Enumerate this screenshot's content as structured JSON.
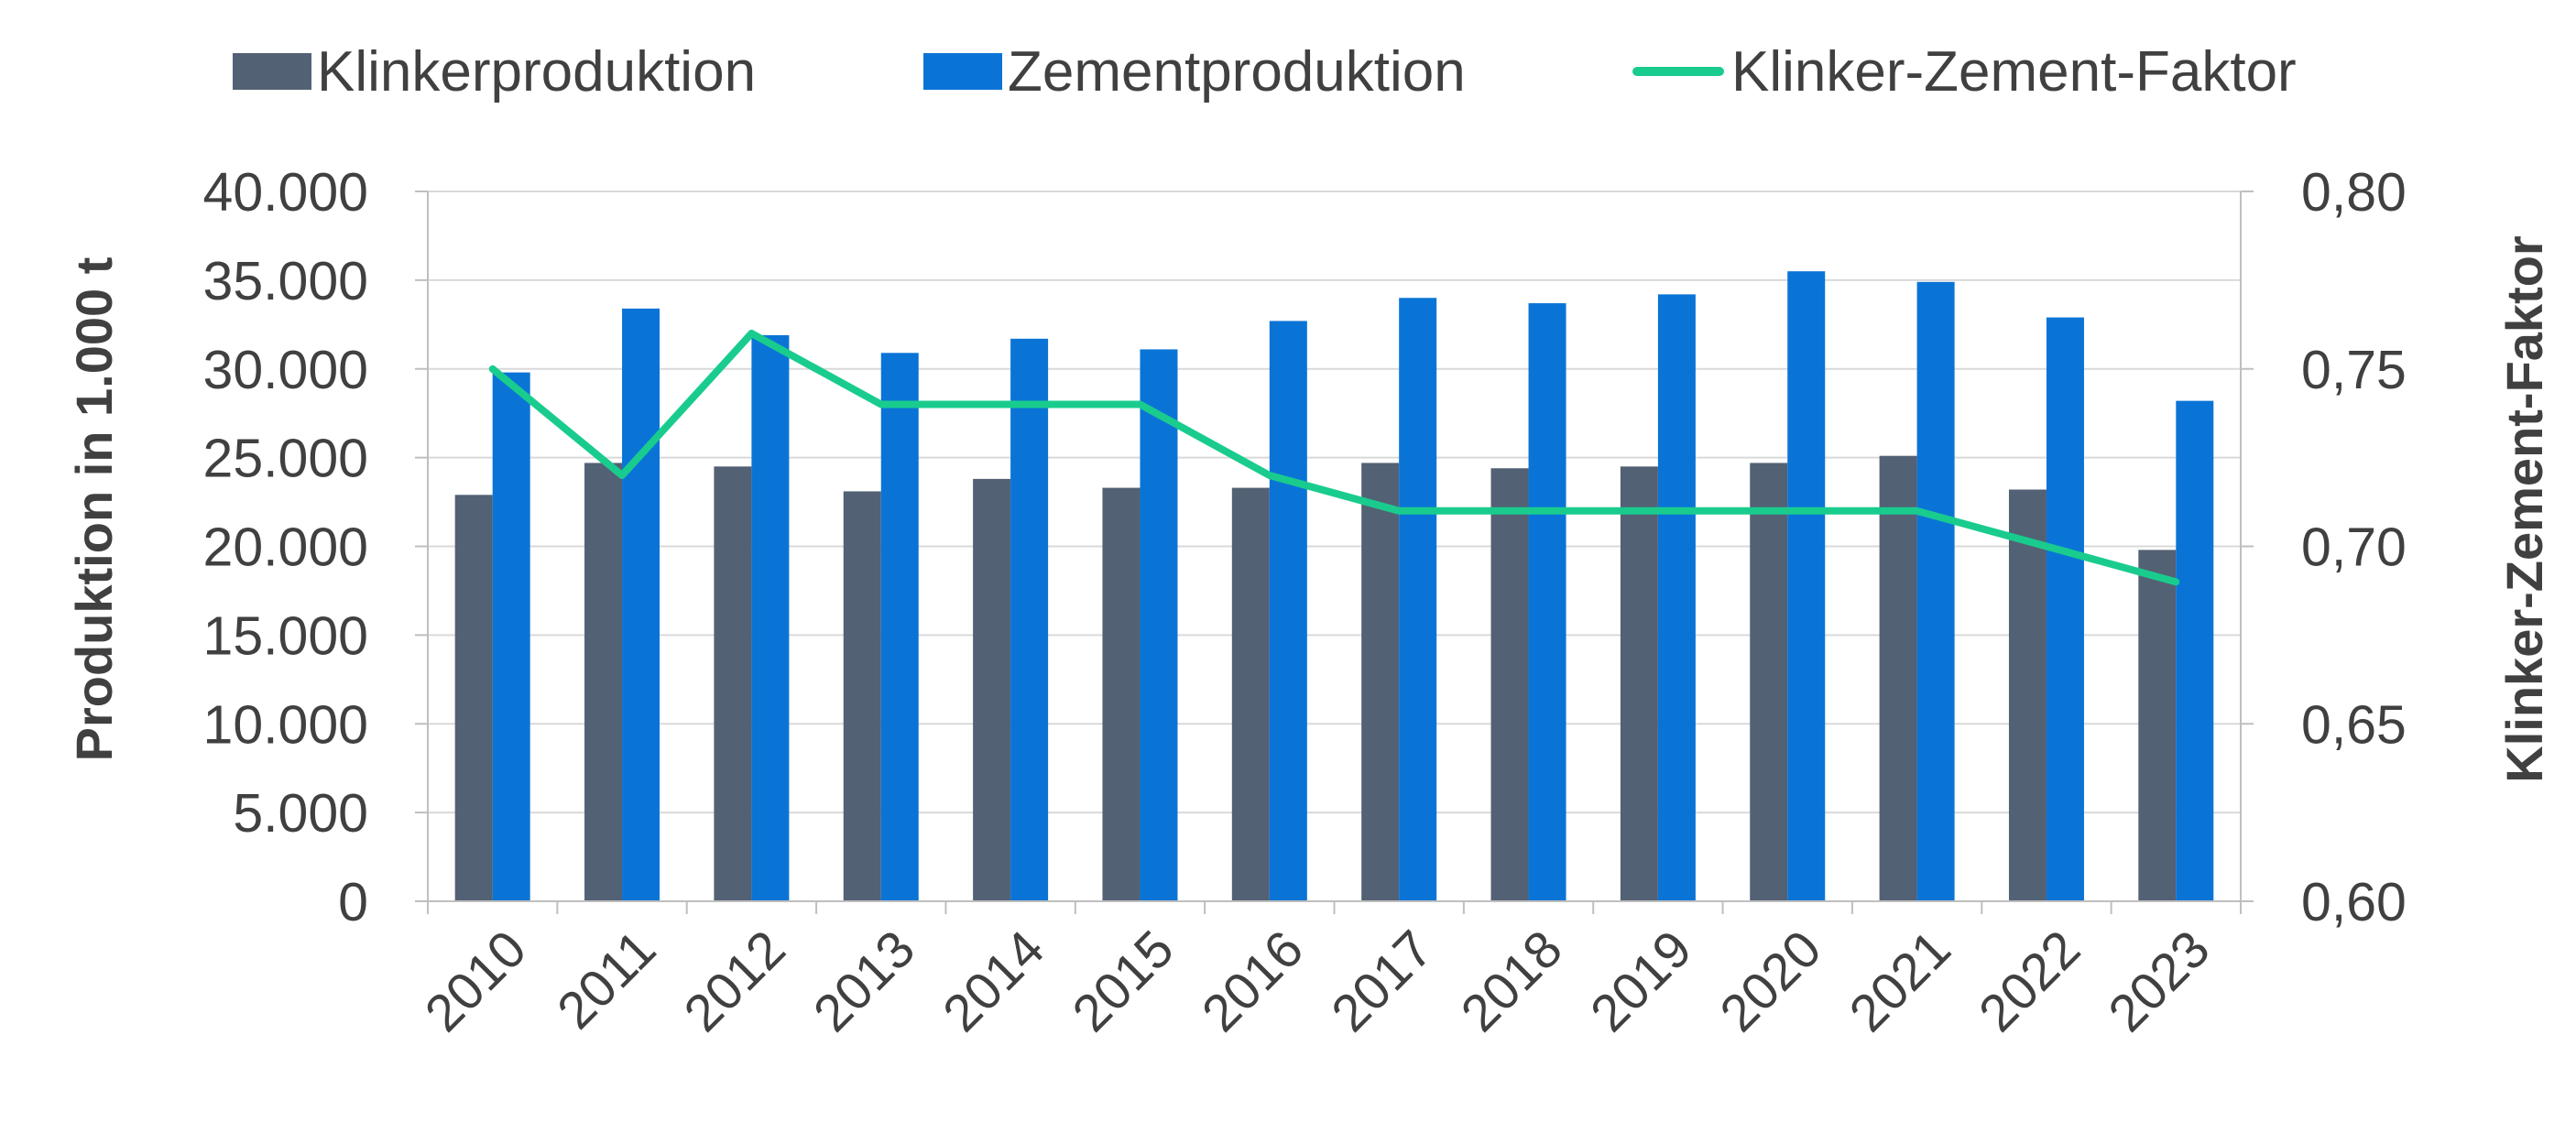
{
  "chart_data": {
    "type": "bar",
    "categories": [
      "2010",
      "2011",
      "2012",
      "2013",
      "2014",
      "2015",
      "2016",
      "2017",
      "2018",
      "2019",
      "2020",
      "2021",
      "2022",
      "2023"
    ],
    "series": [
      {
        "name": "Klinkerproduktion",
        "kind": "bar",
        "axis": "left",
        "color": "#536174",
        "values": [
          22900,
          24700,
          24500,
          23100,
          23800,
          23300,
          23300,
          24700,
          24400,
          24500,
          24700,
          25100,
          23200,
          19800
        ]
      },
      {
        "name": "Zementproduktion",
        "kind": "bar",
        "axis": "left",
        "color": "#0A74D6",
        "values": [
          29800,
          33400,
          31900,
          30900,
          31700,
          31100,
          32700,
          34000,
          33700,
          34200,
          35500,
          34900,
          32900,
          28200
        ]
      },
      {
        "name": "Klinker-Zement-Faktor",
        "kind": "line",
        "axis": "right",
        "color": "#19CC8E",
        "values": [
          0.75,
          0.72,
          0.76,
          0.74,
          0.74,
          0.74,
          0.72,
          0.71,
          0.71,
          0.71,
          0.71,
          0.71,
          0.7,
          0.69
        ]
      }
    ],
    "ylabel": "Produktion in 1.000 t",
    "y2label": "Klinker-Zement-Faktor",
    "ylim": [
      0,
      40000
    ],
    "y2lim": [
      0.6,
      0.8
    ],
    "yticks": [
      "0",
      "5.000",
      "10.000",
      "15.000",
      "20.000",
      "25.000",
      "30.000",
      "35.000",
      "40.000"
    ],
    "y2ticks": [
      "0,60",
      "0,65",
      "0,70",
      "0,75",
      "0,80"
    ],
    "grid": true,
    "legend_position": "top",
    "gridline_color": "#d9d9d9"
  }
}
